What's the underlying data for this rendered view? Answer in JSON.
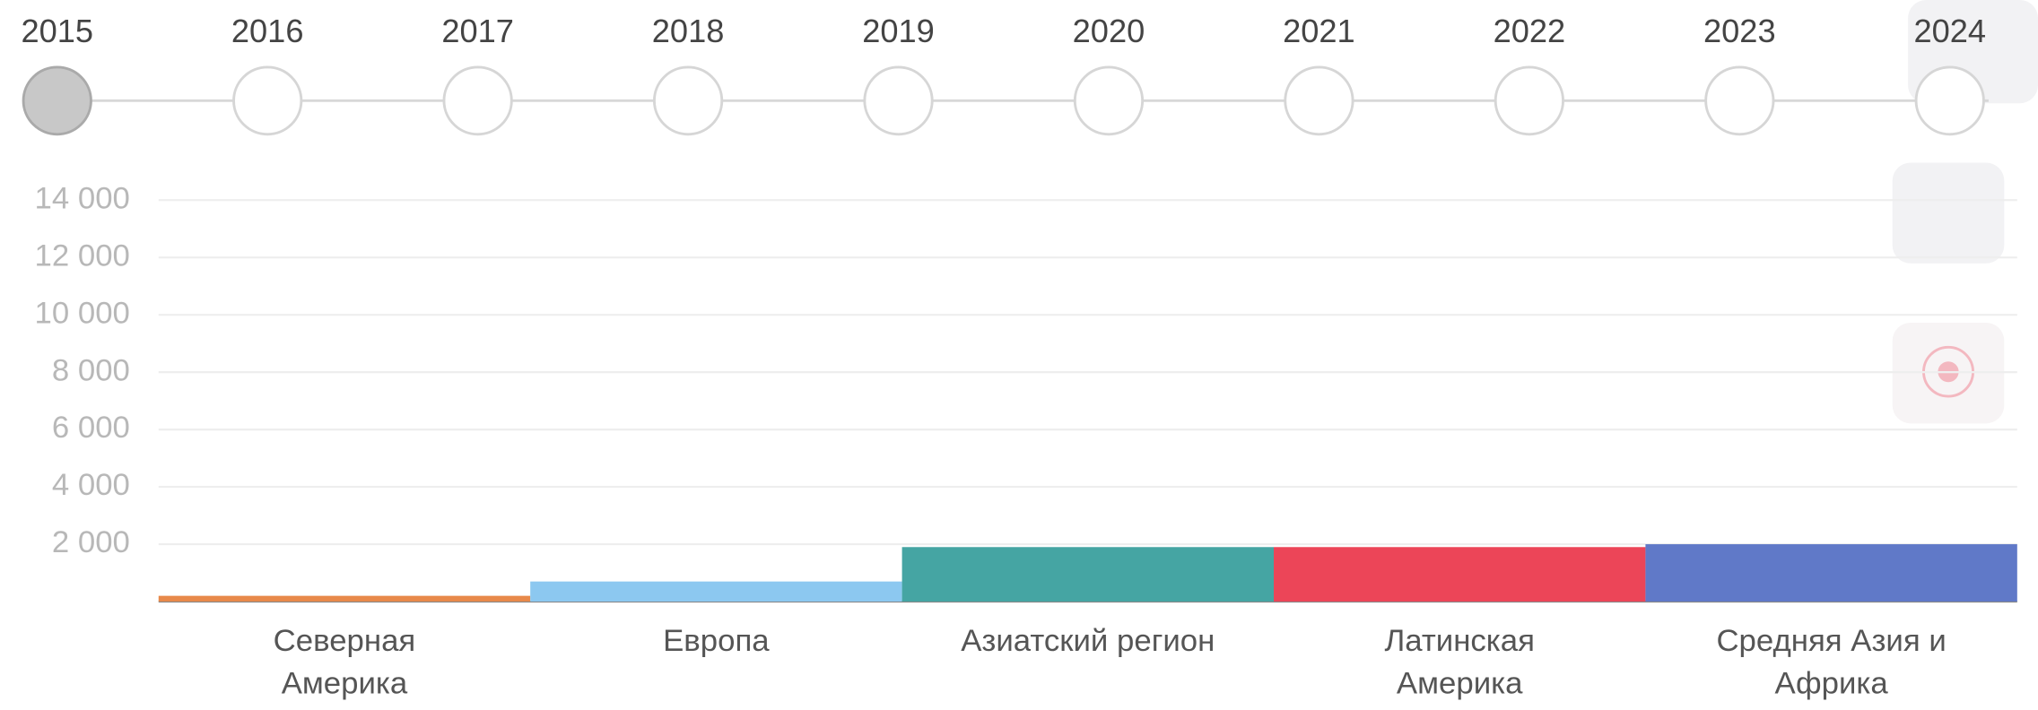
{
  "timeline": {
    "years": [
      "2015",
      "2016",
      "2017",
      "2018",
      "2019",
      "2020",
      "2021",
      "2022",
      "2023",
      "2024"
    ],
    "selected_index": 0
  },
  "chart_data": {
    "type": "bar",
    "categories": [
      "Северная\nАмерика",
      "Европа",
      "Азиатский регион",
      "Латинская\nАмерика",
      "Средняя Азия и\nАфрика"
    ],
    "values": [
      200,
      700,
      1900,
      1900,
      2000
    ],
    "colors": [
      "#e8894a",
      "#8cc8f0",
      "#45a5a3",
      "#ec4558",
      "#6079c8"
    ],
    "ylim": [
      0,
      14000
    ],
    "yticks": [
      {
        "value": 2000,
        "label": "2 000"
      },
      {
        "value": 4000,
        "label": "4 000"
      },
      {
        "value": 6000,
        "label": "6 000"
      },
      {
        "value": 8000,
        "label": "8 000"
      },
      {
        "value": 10000,
        "label": "10 000"
      },
      {
        "value": 12000,
        "label": "12 000"
      },
      {
        "value": 14000,
        "label": "14 000"
      }
    ],
    "grid": true
  }
}
